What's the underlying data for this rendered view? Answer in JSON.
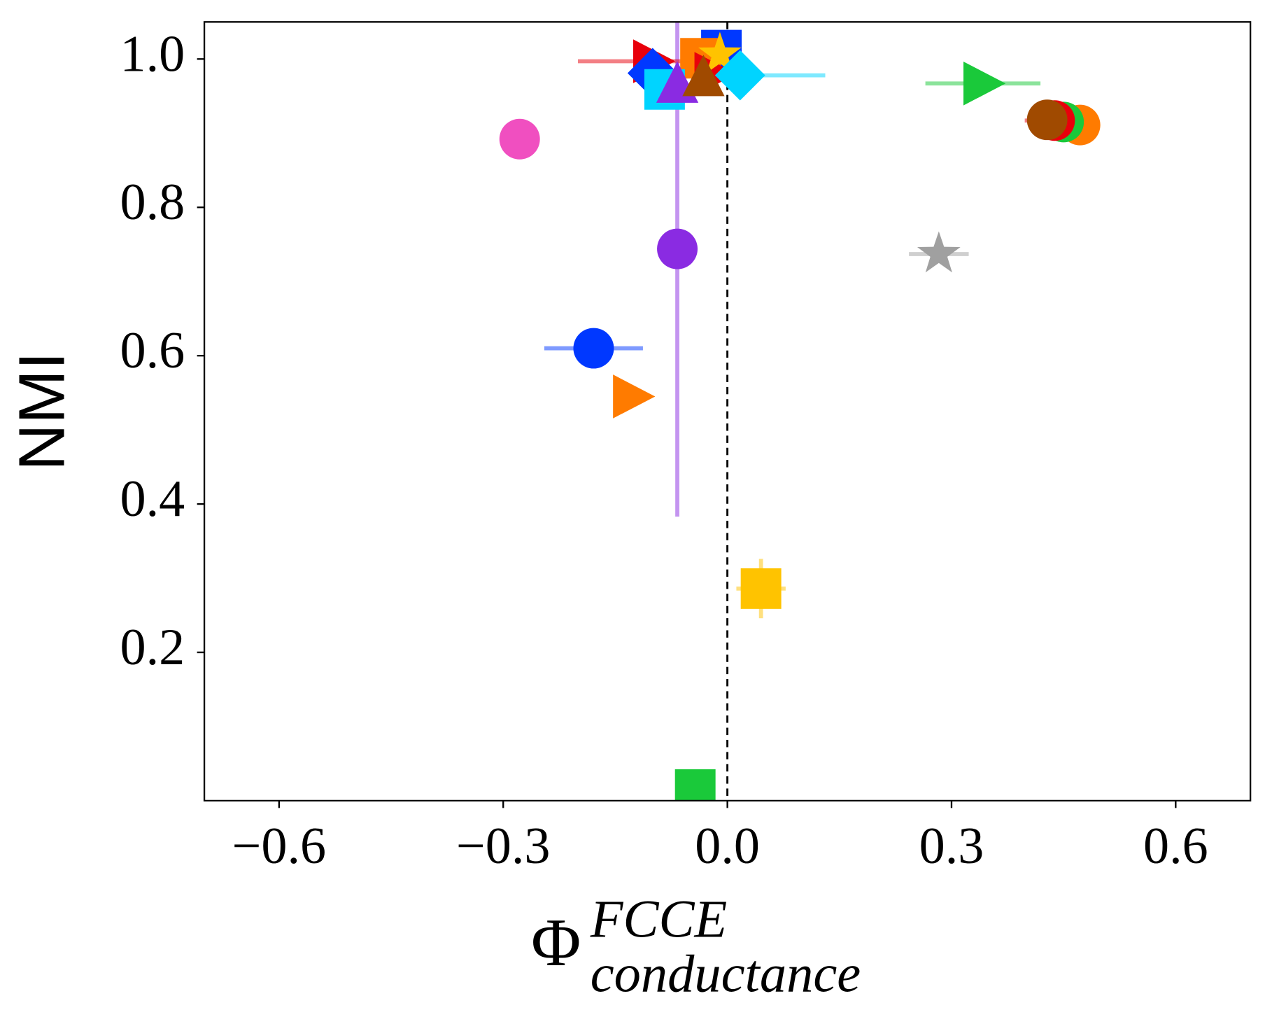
{
  "chart_data": {
    "type": "scatter",
    "xlabel": {
      "base": "Φ",
      "sup": "FCCE",
      "sub": "conductance"
    },
    "ylabel": "NMI",
    "xlim": [
      -0.7,
      0.7
    ],
    "ylim": [
      0,
      1.05
    ],
    "xticks": [
      {
        "value": -0.6,
        "label": "−0.6"
      },
      {
        "value": -0.3,
        "label": "−0.3"
      },
      {
        "value": 0,
        "label": "0.0"
      },
      0.3,
      0.6
    ],
    "yticks": [
      0.2,
      0.4,
      0.6,
      0.8,
      {
        "value": 1,
        "label": "1.0"
      }
    ],
    "reference_line_x": 0,
    "points": [
      {
        "x": -0.278,
        "y": 0.892,
        "color": "#f04fc0",
        "marker": "circle"
      },
      {
        "x": -0.067,
        "y": 0.744,
        "color": "#8a2be2",
        "marker": "circle",
        "yerr": 0.361
      },
      {
        "x": -0.179,
        "y": 0.61,
        "color": "#0038ff",
        "marker": "circle",
        "xerr": 0.066
      },
      {
        "x": -0.127,
        "y": 0.545,
        "color": "#ff7b00",
        "marker": "triangle-right"
      },
      {
        "x": 0.045,
        "y": 0.286,
        "color": "#ffc300",
        "marker": "square",
        "xerr": 0.033,
        "yerr": 0.04
      },
      {
        "x": -0.043,
        "y": 0.015,
        "color": "#1ac93a",
        "marker": "square"
      },
      {
        "x": 0.283,
        "y": 0.737,
        "color": "#a0a0a0",
        "marker": "star",
        "xerr": 0.04
      },
      {
        "x": 0.342,
        "y": 0.967,
        "color": "#1ac93a",
        "marker": "triangle-right",
        "xerr": 0.077
      },
      {
        "x": 0.472,
        "y": 0.911,
        "color": "#ff7b00",
        "marker": "circle"
      },
      {
        "x": 0.45,
        "y": 0.915,
        "color": "#1ac93a",
        "marker": "circle"
      },
      {
        "x": 0.438,
        "y": 0.917,
        "color": "#e8000b",
        "marker": "circle",
        "xerr": 0.04
      },
      {
        "x": 0.428,
        "y": 0.918,
        "color": "#a04a00",
        "marker": "circle"
      },
      {
        "x": -0.008,
        "y": 1.012,
        "color": "#0038ff",
        "marker": "square"
      },
      {
        "x": -0.036,
        "y": 1.001,
        "color": "#ff7b00",
        "marker": "square"
      },
      {
        "x": -0.018,
        "y": 0.98,
        "color": "#e8000b",
        "marker": "triangle-right"
      },
      {
        "x": -0.01,
        "y": 1.006,
        "color": "#ffc300",
        "marker": "star"
      },
      {
        "x": 0.017,
        "y": 0.978,
        "color": "#00d4ff",
        "marker": "diamond",
        "xerr": 0.114
      },
      {
        "x": -0.1,
        "y": 0.997,
        "color": "#e8000b",
        "marker": "triangle-right",
        "xerr": 0.1
      },
      {
        "x": -0.1,
        "y": 0.981,
        "color": "#0038ff",
        "marker": "diamond"
      },
      {
        "x": -0.084,
        "y": 0.959,
        "color": "#00d4ff",
        "marker": "square"
      },
      {
        "x": -0.067,
        "y": 0.965,
        "color": "#8a2be2",
        "marker": "triangle-up"
      },
      {
        "x": -0.032,
        "y": 0.974,
        "color": "#a04a00",
        "marker": "triangle-up"
      }
    ]
  }
}
